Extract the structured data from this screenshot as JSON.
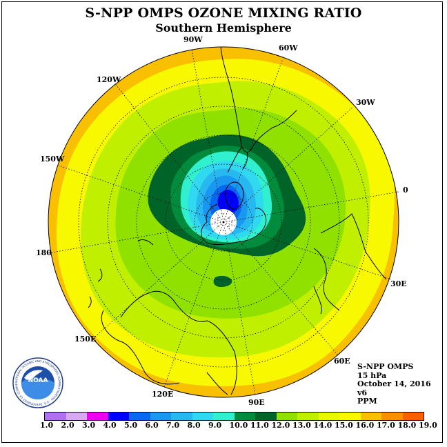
{
  "title": "S-NPP OMPS OZONE MIXING RATIO",
  "subtitle": "Southern Hemisphere",
  "longitude_labels": {
    "w90": "90W",
    "w60": "60W",
    "w30": "30W",
    "zero": "0",
    "w120": "120W",
    "w150": "150W",
    "l180": "180",
    "e30": "30E",
    "e60": "60E",
    "e90": "90E",
    "e120": "120E",
    "e150": "150E"
  },
  "info": {
    "instrument": "S-NPP OMPS",
    "level": "15 hPa",
    "date": "October 14, 2016",
    "version": "v6",
    "units": "PPM"
  },
  "logo": {
    "text": "NOAA",
    "ring_text": "NATIONAL OCEANIC AND ATMOSPHERIC ADMINISTRATION · U.S. DEPARTMENT OF COMMERCE"
  },
  "colorbar": {
    "ticks": [
      "1.0",
      "2.0",
      "3.0",
      "4.0",
      "5.0",
      "6.0",
      "7.0",
      "8.0",
      "9.0",
      "10.0",
      "11.0",
      "12.0",
      "13.0",
      "14.0",
      "15.0",
      "16.0",
      "17.0",
      "18.0",
      "19.0"
    ],
    "colors": [
      "#b070f0",
      "#d8a8f0",
      "#f000f0",
      "#0000ff",
      "#0868f0",
      "#1898f0",
      "#28b8f0",
      "#30d8f0",
      "#30f0d0",
      "#008c3c",
      "#006428",
      "#90e000",
      "#c0f000",
      "#e8f800",
      "#f8f800",
      "#f8c000",
      "#f89000",
      "#f86000",
      "#f81010",
      "#e00000",
      "#8c5a3c"
    ]
  },
  "map": {
    "ozone_levels_ppm": [
      6,
      8,
      9,
      10,
      11,
      12,
      13,
      14,
      15
    ],
    "pole_missing": true
  }
}
